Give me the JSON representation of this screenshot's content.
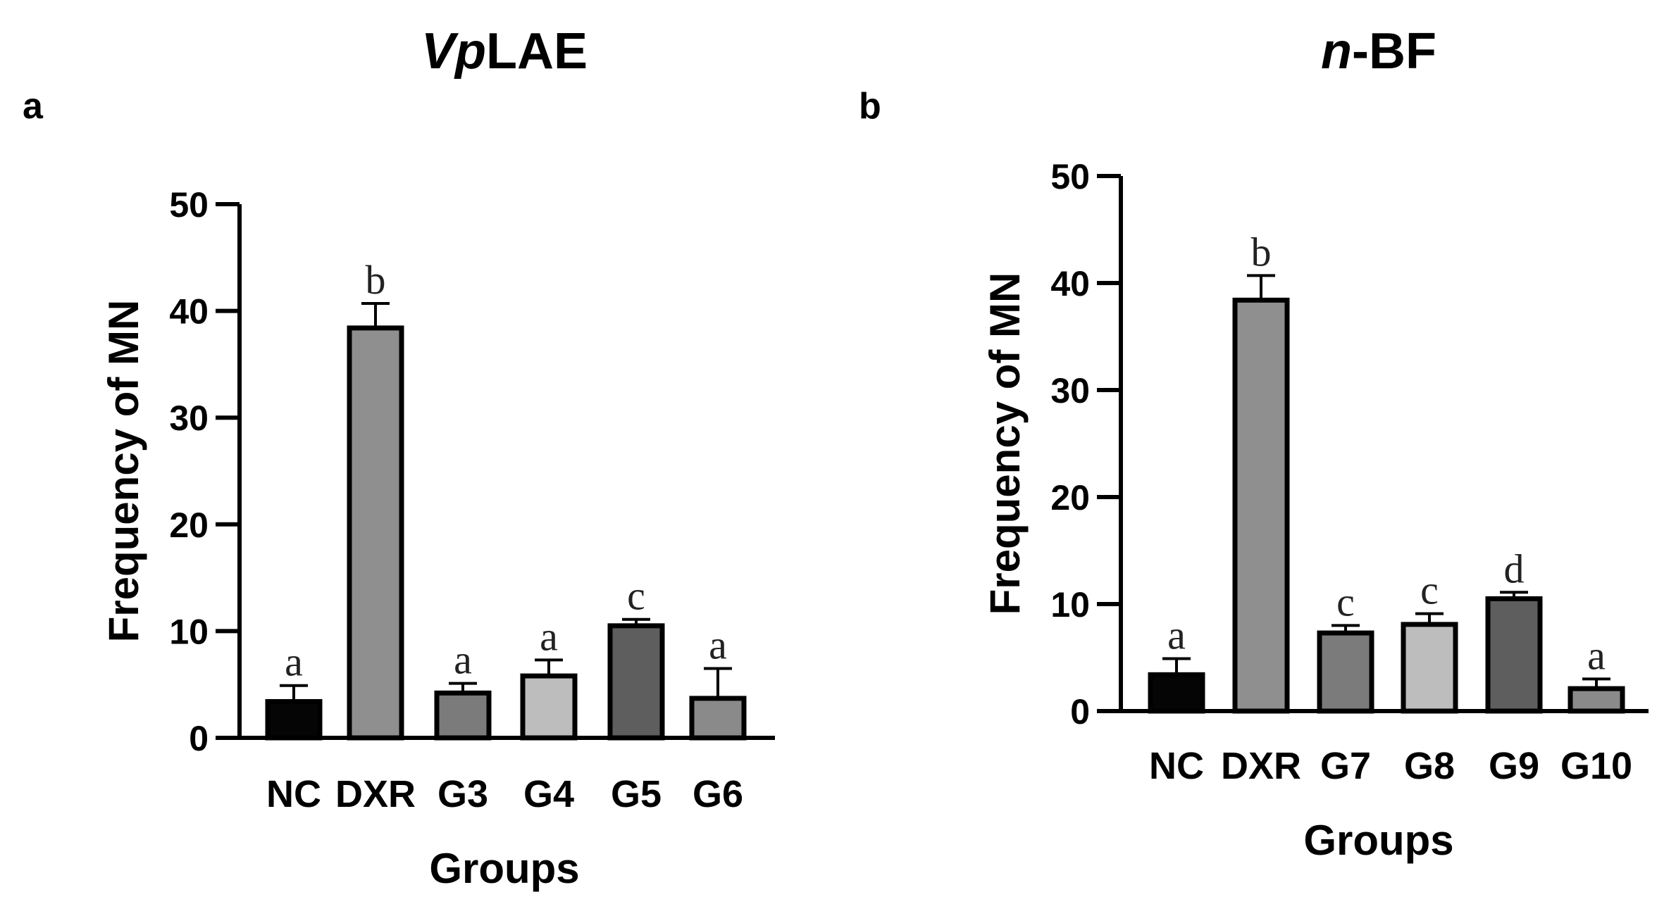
{
  "chart_data": [
    {
      "type": "bar",
      "panel": "a",
      "title_italic": "Vp",
      "title_rest": "LAE",
      "xlabel": "Groups",
      "ylabel": "Frequency of MN",
      "ylim": [
        0,
        50
      ],
      "yticks": [
        0,
        10,
        20,
        30,
        40,
        50
      ],
      "categories": [
        "NC",
        "DXR",
        "G3",
        "G4",
        "G5",
        "G6"
      ],
      "values": [
        3.4,
        38.4,
        4.2,
        5.8,
        10.5,
        3.7
      ],
      "errors": [
        1.5,
        2.3,
        0.9,
        1.5,
        0.6,
        2.8
      ],
      "significance": [
        "a",
        "b",
        "a",
        "a",
        "c",
        "a"
      ],
      "colors": [
        "#050505",
        "#8f8f8f",
        "#7b7b7b",
        "#bdbdbd",
        "#5e5e5e",
        "#8a8a8a"
      ]
    },
    {
      "type": "bar",
      "panel": "b",
      "title_italic": "n",
      "title_rest": "-BF",
      "xlabel": "Groups",
      "ylabel": "Frequency of MN",
      "ylim": [
        0,
        50
      ],
      "yticks": [
        0,
        10,
        20,
        30,
        40,
        50
      ],
      "categories": [
        "NC",
        "DXR",
        "G7",
        "G8",
        "G9",
        "G10"
      ],
      "values": [
        3.4,
        38.4,
        7.3,
        8.1,
        10.5,
        2.1
      ],
      "errors": [
        1.5,
        2.3,
        0.7,
        1.0,
        0.6,
        0.9
      ],
      "significance": [
        "a",
        "b",
        "c",
        "c",
        "d",
        "a"
      ],
      "colors": [
        "#050505",
        "#8f8f8f",
        "#7b7b7b",
        "#bdbdbd",
        "#5e5e5e",
        "#8a8a8a"
      ]
    }
  ]
}
